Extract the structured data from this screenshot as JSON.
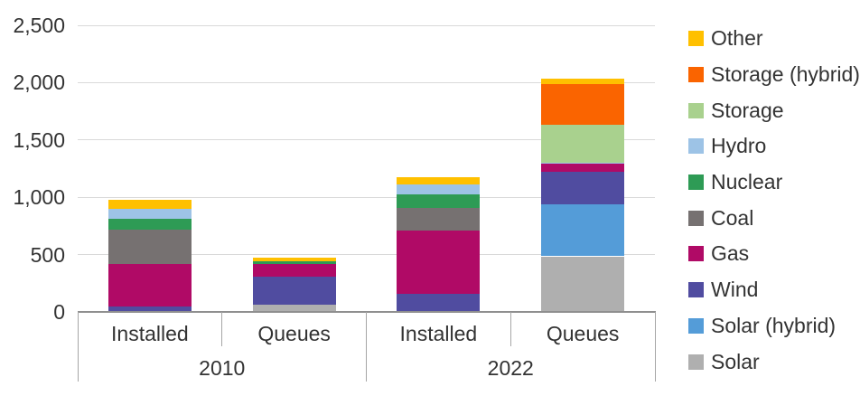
{
  "chart_data": {
    "type": "bar",
    "stacked": true,
    "title": "",
    "xlabel": "",
    "ylabel": "",
    "grid": true,
    "legend_position": "right",
    "groups": [
      {
        "label": "2010",
        "categories": [
          "Installed",
          "Queues"
        ]
      },
      {
        "label": "2022",
        "categories": [
          "Installed",
          "Queues"
        ]
      }
    ],
    "bar_keys": [
      "2010 Installed",
      "2010 Queues",
      "2022 Installed",
      "2022 Queues"
    ],
    "y_axis": {
      "ylim": [
        0,
        2500
      ],
      "ticks": [
        0,
        500,
        1000,
        1500,
        2000,
        2500
      ],
      "tick_labels": [
        "0",
        "500",
        "1,000",
        "1,500",
        "2,000",
        "2,500"
      ]
    },
    "series_bottom_to_top": [
      {
        "name": "Solar",
        "color": "#afafaf",
        "values": [
          0,
          60,
          0,
          485
        ]
      },
      {
        "name": "Solar (hybrid)",
        "color": "#549cd8",
        "values": [
          0,
          0,
          0,
          450
        ]
      },
      {
        "name": "Wind",
        "color": "#504ca0",
        "values": [
          50,
          245,
          160,
          285
        ]
      },
      {
        "name": "Gas",
        "color": "#b00a66",
        "values": [
          370,
          110,
          550,
          70
        ]
      },
      {
        "name": "Coal",
        "color": "#767171",
        "values": [
          300,
          0,
          200,
          0
        ]
      },
      {
        "name": "Nuclear",
        "color": "#2e9b55",
        "values": [
          90,
          30,
          115,
          0
        ]
      },
      {
        "name": "Hydro",
        "color": "#9dc3e6",
        "values": [
          90,
          0,
          90,
          15
        ]
      },
      {
        "name": "Storage",
        "color": "#a9d18e",
        "values": [
          0,
          0,
          0,
          325
        ]
      },
      {
        "name": "Storage (hybrid)",
        "color": "#fa6400",
        "values": [
          0,
          0,
          0,
          360
        ]
      },
      {
        "name": "Other",
        "color": "#ffc000",
        "values": [
          75,
          30,
          60,
          45
        ]
      }
    ],
    "legend_top_to_bottom": [
      "Other",
      "Storage (hybrid)",
      "Storage",
      "Hydro",
      "Nuclear",
      "Coal",
      "Gas",
      "Wind",
      "Solar (hybrid)",
      "Solar"
    ],
    "totals": {
      "2010 Installed": 975,
      "2010 Queues": 475,
      "2022 Installed": 1175,
      "2022 Queues": 2035
    }
  },
  "colors": {
    "gridline": "#d9d9d9",
    "axis": "#8f8f8f",
    "divider": "#a6a6a6",
    "text": "#333333",
    "background": "#ffffff"
  }
}
